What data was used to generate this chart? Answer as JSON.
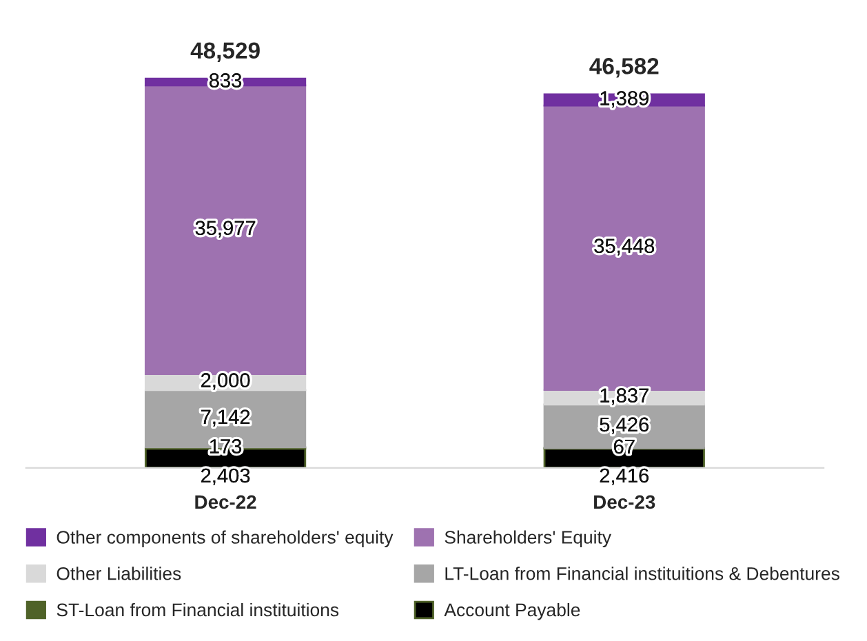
{
  "chart_data": {
    "type": "bar",
    "stacked": true,
    "categories": [
      "Dec-22",
      "Dec-23"
    ],
    "series": [
      {
        "name": "Account Payable",
        "color": "#000000",
        "values": [
          2403,
          2416
        ],
        "value_labels": [
          "2,403",
          "2,416"
        ]
      },
      {
        "name": "ST-Loan from Financial instituitions",
        "color": "#4f6228",
        "values": [
          173,
          67
        ],
        "value_labels": [
          "173",
          "67"
        ]
      },
      {
        "name": "LT-Loan from Financial instituitions & Debentures",
        "color": "#a6a6a6",
        "values": [
          7142,
          5426
        ],
        "value_labels": [
          "7,142",
          "5,426"
        ]
      },
      {
        "name": "Other Liabilities",
        "color": "#d9d9d9",
        "values": [
          2000,
          1837
        ],
        "value_labels": [
          "2,000",
          "1,837"
        ]
      },
      {
        "name": "Shareholders' Equity",
        "color": "#9e72b0",
        "values": [
          35977,
          35448
        ],
        "value_labels": [
          "35,977",
          "35,448"
        ]
      },
      {
        "name": "Other components of shareholders' equity",
        "color": "#7030a0",
        "values": [
          833,
          1389
        ],
        "value_labels": [
          "833",
          "1,389"
        ]
      }
    ],
    "totals": [
      "48,529",
      "46,582"
    ],
    "legend": "bottom"
  }
}
